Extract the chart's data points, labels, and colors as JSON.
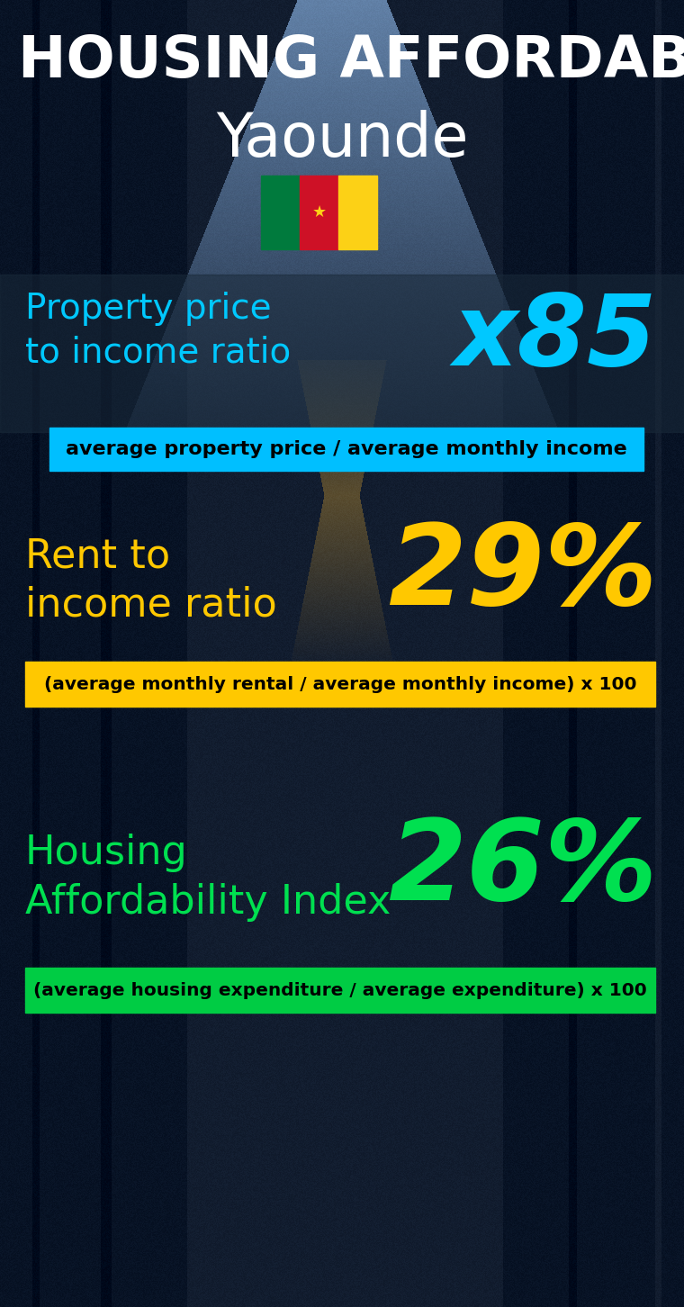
{
  "title_line1": "HOUSING AFFORDABILITY",
  "title_line2": "Yaounde",
  "bg_color": "#0a1520",
  "section1_label": "Property price\nto income ratio",
  "section1_value": "x85",
  "section1_label_color": "#00c8ff",
  "section1_value_color": "#00c8ff",
  "section1_formula": "average property price / average monthly income",
  "section1_formula_bg": "#00bfff",
  "section1_formula_color": "#000000",
  "section2_label": "Rent to\nincome ratio",
  "section2_value": "29%",
  "section2_label_color": "#ffc800",
  "section2_value_color": "#ffc800",
  "section2_formula": "(average monthly rental / average monthly income) x 100",
  "section2_formula_bg": "#ffc800",
  "section2_formula_color": "#000000",
  "section3_label": "Housing\nAffordability Index",
  "section3_value": "26%",
  "section3_label_color": "#00e050",
  "section3_value_color": "#00e050",
  "section3_formula": "(average housing expenditure / average expenditure) x 100",
  "section3_formula_bg": "#00cc44",
  "section3_formula_color": "#000000",
  "flag_green": "#007a3d",
  "flag_red": "#ce1126",
  "flag_yellow": "#fcd116",
  "star_color": "#fcd116",
  "overlay_color": "#1a2a3a",
  "overlay_alpha": 0.55
}
